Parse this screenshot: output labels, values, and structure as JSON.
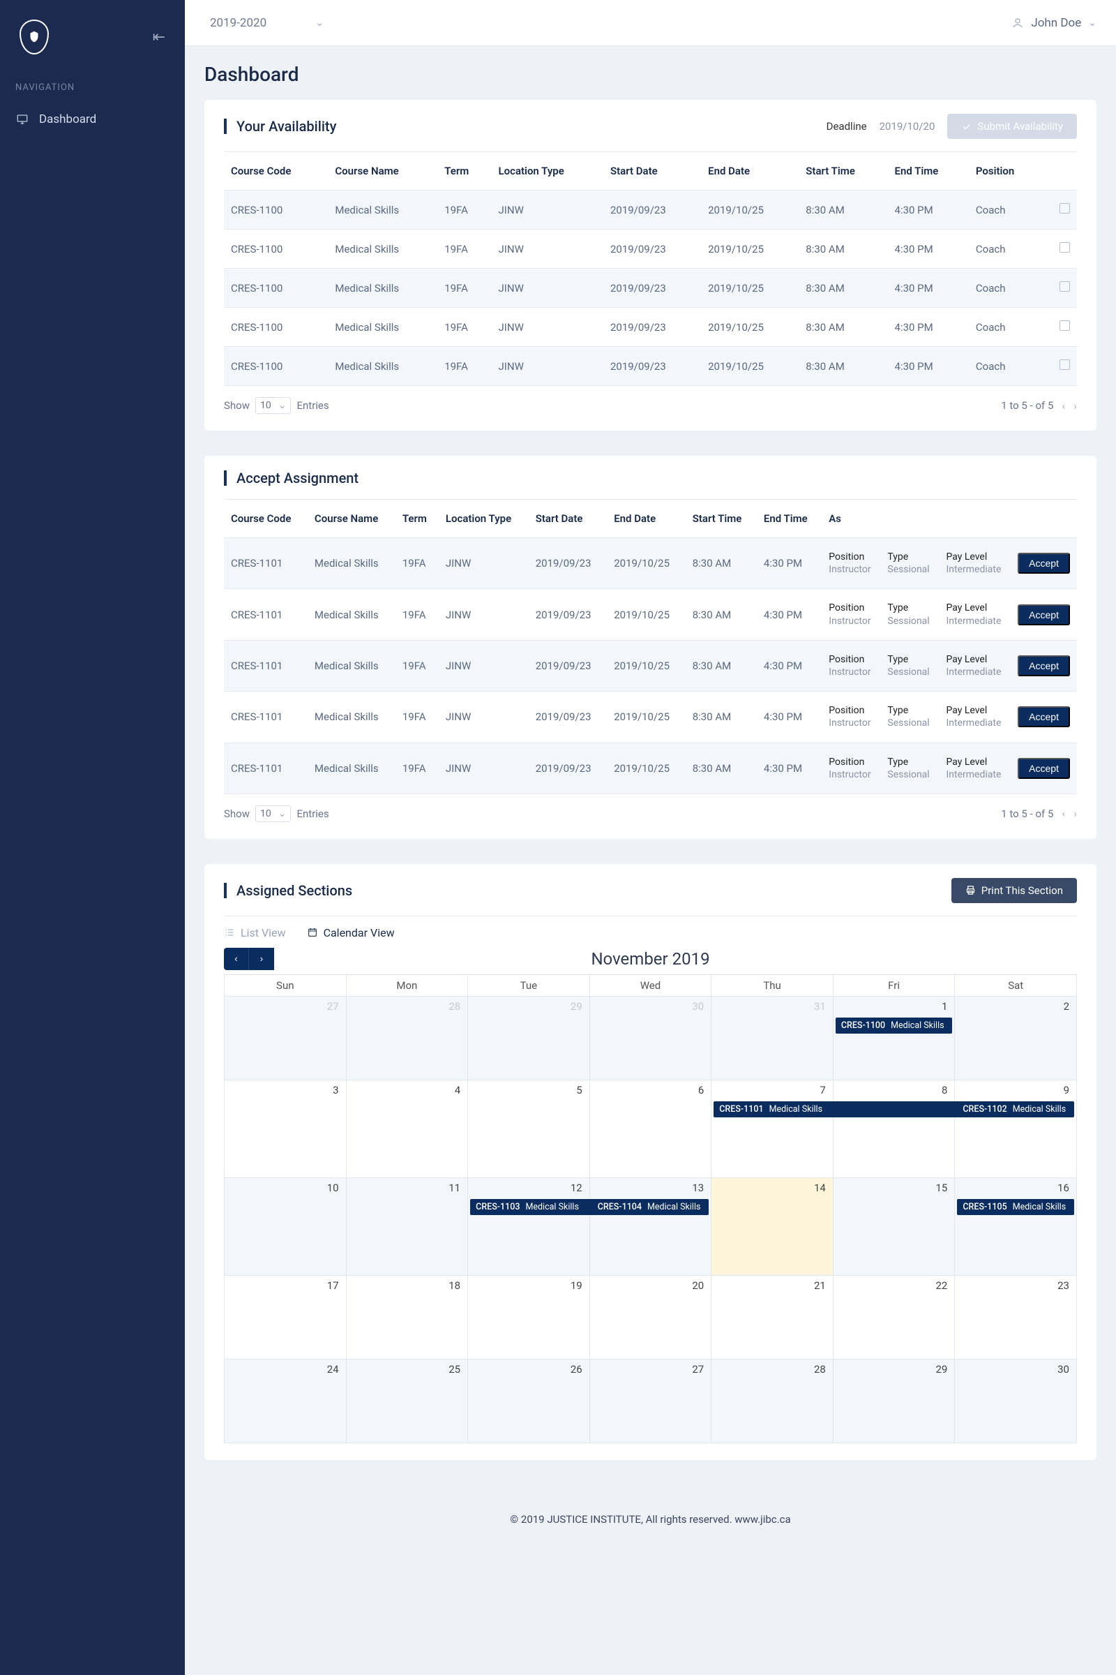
{
  "sidebar": {
    "nav_label": "NAVIGATION",
    "items": [
      {
        "label": "Dashboard"
      }
    ]
  },
  "topbar": {
    "year": "2019-2020",
    "user": "John Doe"
  },
  "page_title": "Dashboard",
  "availability": {
    "title": "Your Availability",
    "deadline_label": "Deadline",
    "deadline_date": "2019/10/20",
    "submit_label": "Submit Availability",
    "headers": [
      "Course Code",
      "Course Name",
      "Term",
      "Location Type",
      "Start Date",
      "End Date",
      "Start Time",
      "End Time",
      "Position",
      ""
    ],
    "rows": [
      [
        "CRES-1100",
        "Medical Skills",
        "19FA",
        "JINW",
        "2019/09/23",
        "2019/10/25",
        "8:30 AM",
        "4:30 PM",
        "Coach"
      ],
      [
        "CRES-1100",
        "Medical Skills",
        "19FA",
        "JINW",
        "2019/09/23",
        "2019/10/25",
        "8:30 AM",
        "4:30 PM",
        "Coach"
      ],
      [
        "CRES-1100",
        "Medical Skills",
        "19FA",
        "JINW",
        "2019/09/23",
        "2019/10/25",
        "8:30 AM",
        "4:30 PM",
        "Coach"
      ],
      [
        "CRES-1100",
        "Medical Skills",
        "19FA",
        "JINW",
        "2019/09/23",
        "2019/10/25",
        "8:30 AM",
        "4:30 PM",
        "Coach"
      ],
      [
        "CRES-1100",
        "Medical Skills",
        "19FA",
        "JINW",
        "2019/09/23",
        "2019/10/25",
        "8:30 AM",
        "4:30 PM",
        "Coach"
      ]
    ],
    "show_label": "Show",
    "entries_value": "10",
    "entries_label": "Entries",
    "pagination": "1 to 5 - of  5"
  },
  "assignment": {
    "title": "Accept Assignment",
    "headers": [
      "Course Code",
      "Course Name",
      "Term",
      "Location Type",
      "Start Date",
      "End Date",
      "Start Time",
      "End Time",
      "As"
    ],
    "accept_label": "Accept",
    "as_labels": {
      "position": "Position",
      "type": "Type",
      "paylevel": "Pay Level"
    },
    "rows": [
      {
        "c": [
          "CRES-1101",
          "Medical Skills",
          "19FA",
          "JINW",
          "2019/09/23",
          "2019/10/25",
          "8:30 AM",
          "4:30 PM"
        ],
        "position": "Instructor",
        "type": "Sessional",
        "paylevel": "Intermediate"
      },
      {
        "c": [
          "CRES-1101",
          "Medical Skills",
          "19FA",
          "JINW",
          "2019/09/23",
          "2019/10/25",
          "8:30 AM",
          "4:30 PM"
        ],
        "position": "Instructor",
        "type": "Sessional",
        "paylevel": "Intermediate"
      },
      {
        "c": [
          "CRES-1101",
          "Medical Skills",
          "19FA",
          "JINW",
          "2019/09/23",
          "2019/10/25",
          "8:30 AM",
          "4:30 PM"
        ],
        "position": "Instructor",
        "type": "Sessional",
        "paylevel": "Intermediate"
      },
      {
        "c": [
          "CRES-1101",
          "Medical Skills",
          "19FA",
          "JINW",
          "2019/09/23",
          "2019/10/25",
          "8:30 AM",
          "4:30 PM"
        ],
        "position": "Instructor",
        "type": "Sessional",
        "paylevel": "Intermediate"
      },
      {
        "c": [
          "CRES-1101",
          "Medical Skills",
          "19FA",
          "JINW",
          "2019/09/23",
          "2019/10/25",
          "8:30 AM",
          "4:30 PM"
        ],
        "position": "Instructor",
        "type": "Sessional",
        "paylevel": "Intermediate"
      }
    ],
    "show_label": "Show",
    "entries_value": "10",
    "entries_label": "Entries",
    "pagination": "1 to 5 - of  5"
  },
  "assigned": {
    "title": "Assigned Sections",
    "print_label": "Print This Section",
    "list_view": "List View",
    "calendar_view": "Calendar View",
    "month": "November 2019",
    "dow": [
      "Sun",
      "Mon",
      "Tue",
      "Wed",
      "Thu",
      "Fri",
      "Sat"
    ],
    "grid": [
      [
        {
          "n": "27",
          "muted": true
        },
        {
          "n": "28",
          "muted": true
        },
        {
          "n": "29",
          "muted": true
        },
        {
          "n": "30",
          "muted": true
        },
        {
          "n": "31",
          "muted": true
        },
        {
          "n": "1",
          "events": [
            {
              "code": "CRES-1100",
              "name": "Medical Skills",
              "span": 1
            }
          ]
        },
        {
          "n": "2"
        }
      ],
      [
        {
          "n": "3"
        },
        {
          "n": "4"
        },
        {
          "n": "5"
        },
        {
          "n": "6"
        },
        {
          "n": "7",
          "events": [
            {
              "code": "CRES-1101",
              "name": "Medical Skills",
              "span": 3
            }
          ]
        },
        {
          "n": "8"
        },
        {
          "n": "9",
          "events": [
            {
              "code": "CRES-1102",
              "name": "Medical Skills",
              "span": 1
            }
          ]
        }
      ],
      [
        {
          "n": "10"
        },
        {
          "n": "11"
        },
        {
          "n": "12",
          "events": [
            {
              "code": "CRES-1103",
              "name": "Medical Skills",
              "span": 2
            }
          ]
        },
        {
          "n": "13",
          "events": [
            {
              "code": "CRES-1104",
              "name": "Medical Skills",
              "span": 1
            }
          ]
        },
        {
          "n": "14",
          "today": true
        },
        {
          "n": "15"
        },
        {
          "n": "16",
          "events": [
            {
              "code": "CRES-1105",
              "name": "Medical Skills",
              "span": 1
            }
          ]
        }
      ],
      [
        {
          "n": "17"
        },
        {
          "n": "18"
        },
        {
          "n": "19"
        },
        {
          "n": "20"
        },
        {
          "n": "21"
        },
        {
          "n": "22"
        },
        {
          "n": "23"
        }
      ],
      [
        {
          "n": "24"
        },
        {
          "n": "25"
        },
        {
          "n": "26"
        },
        {
          "n": "27"
        },
        {
          "n": "28"
        },
        {
          "n": "29"
        },
        {
          "n": "30"
        }
      ]
    ]
  },
  "footer": "© 2019 JUSTICE INSTITUTE,  All rights reserved. www.jibc.ca"
}
